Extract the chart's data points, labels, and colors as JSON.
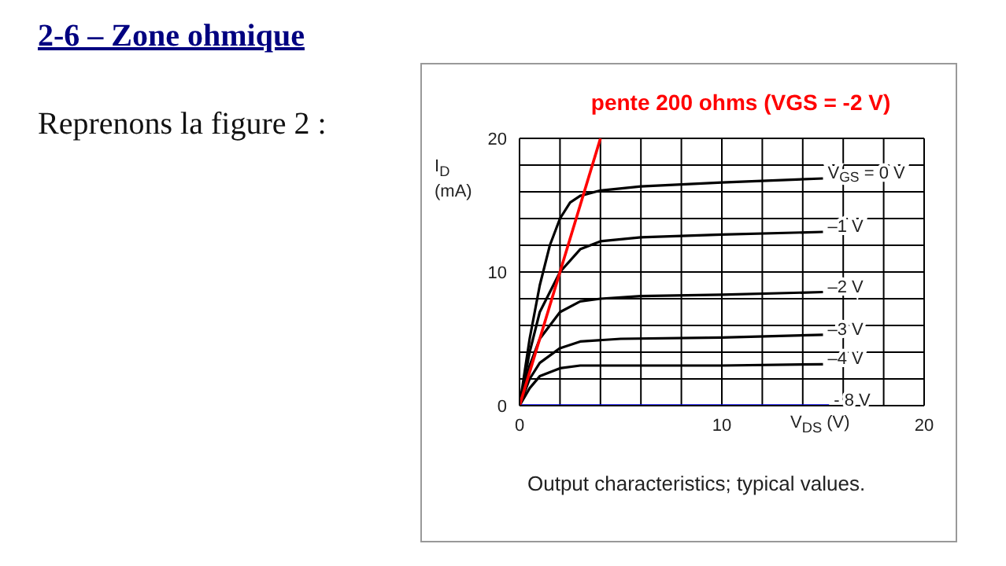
{
  "chart_data": {
    "type": "line",
    "title": "2-6 – Zone ohmique",
    "subtitle": "Reprenons la figure 2 :",
    "xlabel": "V$_{DS}$ (V)",
    "ylabel": "I$_{D}$ (mA)",
    "annotations": [
      "Output characteristics; typical values."
    ],
    "xlim": [
      0,
      20
    ],
    "ylim": [
      0,
      20
    ],
    "xticks": [
      0,
      {
        "value": 2,
        "label": null
      },
      {
        "value": 4,
        "label": null
      },
      {
        "value": 6,
        "label": null
      },
      {
        "value": 8,
        "label": null
      },
      10,
      {
        "value": 12,
        "label": null
      },
      {
        "value": 14,
        "label": null
      },
      {
        "value": 16,
        "label": null
      },
      {
        "value": 18,
        "label": null
      },
      20
    ],
    "yticks": [
      0,
      {
        "value": 2,
        "label": null
      },
      {
        "value": 4,
        "label": null
      },
      {
        "value": 6,
        "label": null
      },
      {
        "value": 8,
        "label": null
      },
      10,
      {
        "value": 12,
        "label": null
      },
      {
        "value": 14,
        "label": null
      },
      {
        "value": 16,
        "label": null
      },
      {
        "value": 18,
        "label": null
      },
      20
    ],
    "grid": true,
    "marker": "none",
    "line_style": "solid",
    "series": [
      {
        "name": "V$_{GS}$ = 0 V",
        "color": "#000000",
        "x": [
          0,
          0.5,
          1,
          1.5,
          2,
          2.5,
          3,
          4,
          6,
          10,
          15
        ],
        "values": [
          0,
          5,
          9,
          12,
          14,
          15.2,
          15.7,
          16.1,
          16.4,
          16.7,
          17
        ]
      },
      {
        "name": "–1 V",
        "color": "#000000",
        "x": [
          0,
          0.5,
          1,
          2,
          3,
          4,
          6,
          10,
          15
        ],
        "values": [
          0,
          4,
          7,
          10,
          11.7,
          12.3,
          12.6,
          12.8,
          13
        ]
      },
      {
        "name": "–2 V",
        "color": "#000000",
        "x": [
          0,
          0.5,
          1,
          2,
          3,
          4,
          6,
          10,
          15
        ],
        "values": [
          0,
          3,
          5,
          7,
          7.8,
          8,
          8.2,
          8.3,
          8.5
        ]
      },
      {
        "name": "–3 V",
        "color": "#000000",
        "x": [
          0,
          0.5,
          1,
          2,
          3,
          5,
          10,
          15
        ],
        "values": [
          0,
          2,
          3.2,
          4.3,
          4.8,
          5,
          5.1,
          5.3
        ]
      },
      {
        "name": "–4 V",
        "color": "#000000",
        "x": [
          0,
          0.5,
          1,
          2,
          3,
          10,
          15
        ],
        "values": [
          0,
          1.3,
          2.2,
          2.8,
          3,
          3,
          3.1
        ]
      },
      {
        "name": "- 8 V",
        "color": "#0000ff",
        "x": [
          0,
          15.3
        ],
        "values": [
          0,
          0
        ]
      },
      {
        "name": "pente 200 ohms (VGS = -2 V)",
        "color": "#ff0000",
        "x": [
          0,
          4
        ],
        "values": [
          0,
          20
        ]
      }
    ]
  }
}
